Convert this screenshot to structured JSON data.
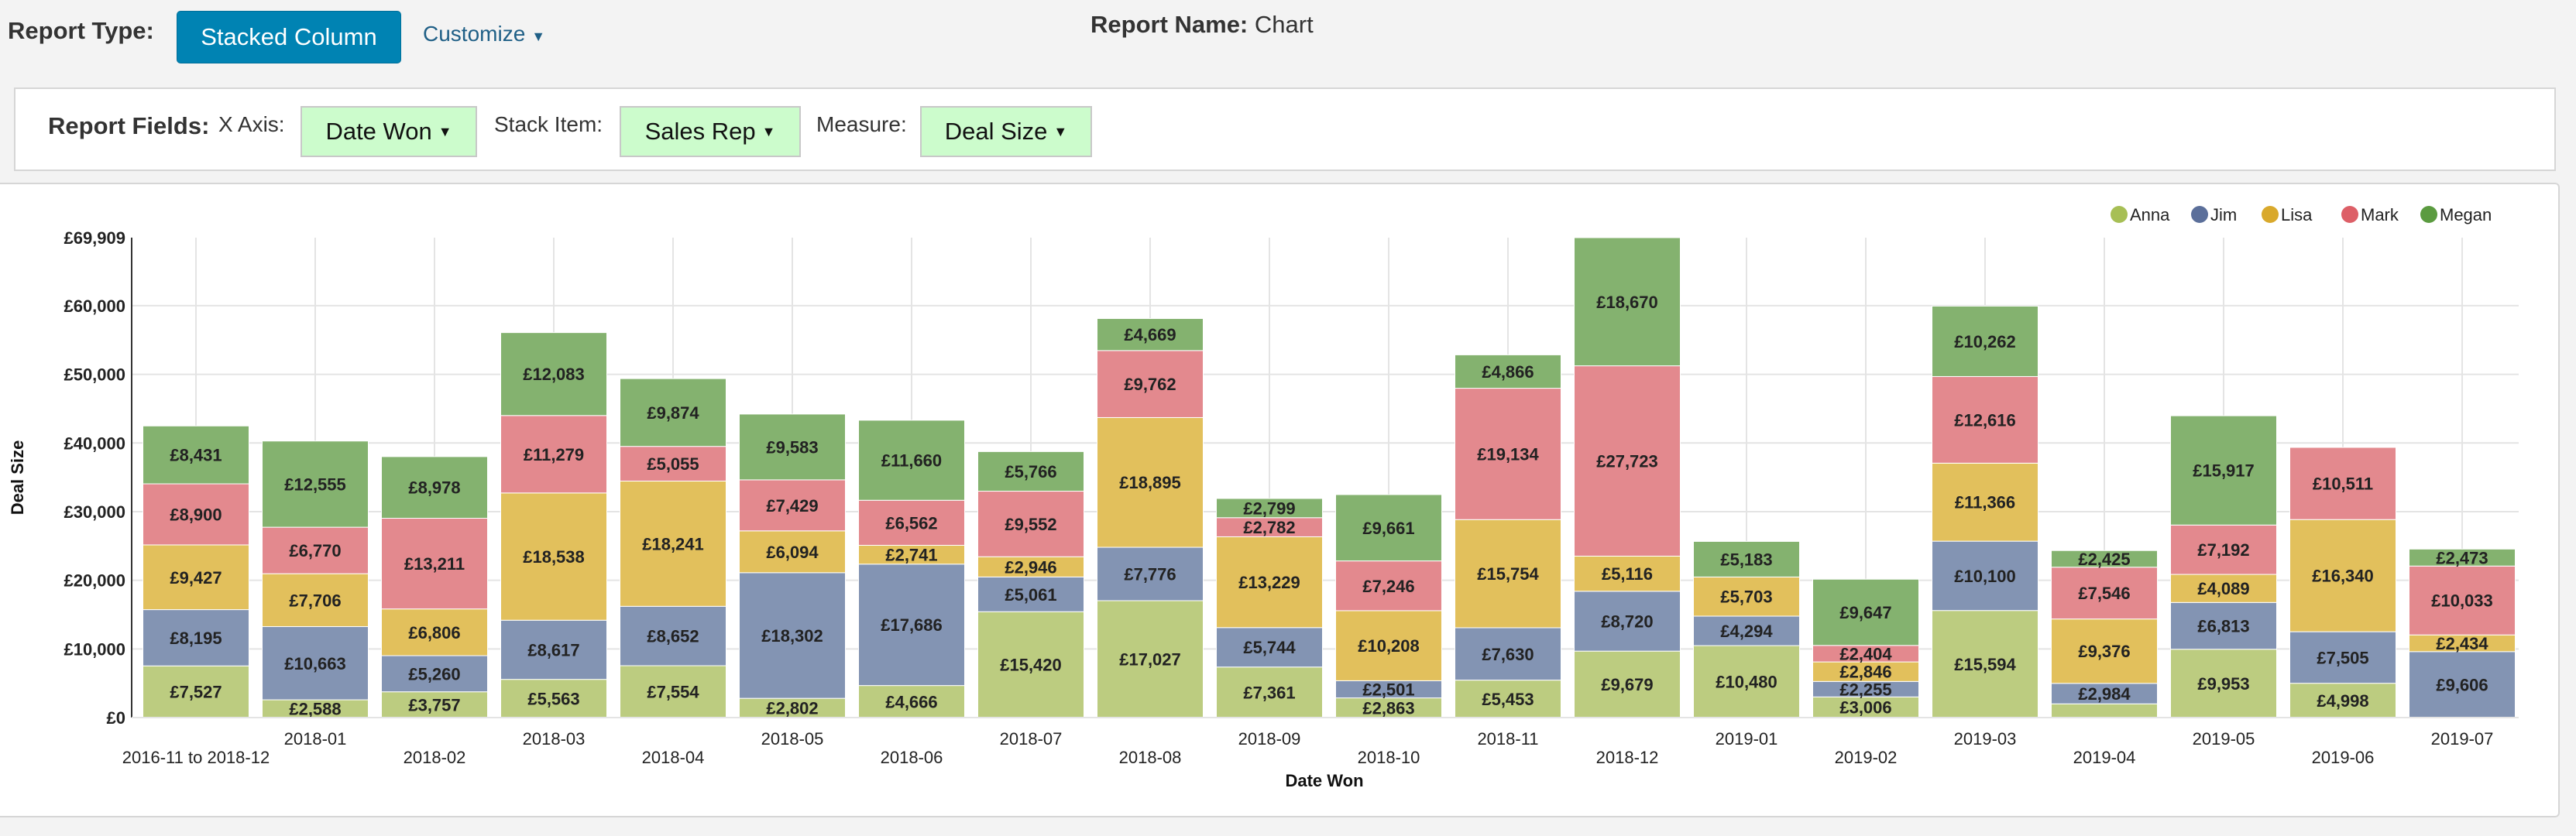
{
  "header": {
    "report_type_label": "Report Type:",
    "report_type_value": "Stacked Column",
    "customize_label": "Customize",
    "report_name_label": "Report Name:",
    "report_name_value": "Chart"
  },
  "fields": {
    "label": "Report Fields:",
    "x_axis_label": "X Axis:",
    "x_axis_value": "Date Won",
    "stack_item_label": "Stack Item:",
    "stack_item_value": "Sales Rep",
    "measure_label": "Measure:",
    "measure_value": "Deal Size"
  },
  "chart_data": {
    "type": "bar",
    "stacked": true,
    "xlabel": "Date Won",
    "ylabel": "Deal Size",
    "ylim": [
      0,
      69909
    ],
    "yticks": [
      "£0",
      "£10,000",
      "£20,000",
      "£30,000",
      "£40,000",
      "£50,000",
      "£60,000",
      "£69,909"
    ],
    "ytick_values": [
      0,
      10000,
      20000,
      30000,
      40000,
      50000,
      60000,
      69909
    ],
    "grid": true,
    "legend_position": "top-right",
    "categories": [
      "2016-11 to 2018-12",
      "2018-01",
      "2018-02",
      "2018-03",
      "2018-04",
      "2018-05",
      "2018-06",
      "2018-07",
      "2018-08",
      "2018-09",
      "2018-10",
      "2018-11",
      "2018-12",
      "2019-01",
      "2019-02",
      "2019-03",
      "2019-04",
      "2019-05",
      "2019-06",
      "2019-07"
    ],
    "series": [
      {
        "name": "Anna",
        "color": "#bccc80",
        "legend_color": "#a7bf55",
        "values": [
          7527,
          2588,
          3757,
          5563,
          7554,
          2802,
          4666,
          15420,
          17027,
          7361,
          2863,
          5453,
          9679,
          10480,
          3006,
          15594,
          2000,
          9953,
          4998,
          0
        ]
      },
      {
        "name": "Jim",
        "color": "#8394b3",
        "legend_color": "#5b6f9a",
        "values": [
          8195,
          10663,
          5260,
          8617,
          8652,
          18302,
          17686,
          5061,
          7776,
          5744,
          2501,
          7630,
          8720,
          4294,
          2255,
          10100,
          2984,
          6813,
          7505,
          9606
        ]
      },
      {
        "name": "Lisa",
        "color": "#e2c05c",
        "legend_color": "#d9a92c",
        "values": [
          9427,
          7706,
          6806,
          18538,
          18241,
          6094,
          2741,
          2946,
          18895,
          13229,
          10208,
          15754,
          5116,
          5703,
          2846,
          11366,
          9376,
          4089,
          16340,
          2434
        ]
      },
      {
        "name": "Mark",
        "color": "#e3898e",
        "legend_color": "#dd5f67",
        "values": [
          8900,
          6770,
          13211,
          11279,
          5055,
          7429,
          6562,
          9552,
          9762,
          2782,
          7246,
          19134,
          27723,
          0,
          2404,
          12616,
          7546,
          7192,
          10511,
          10033
        ]
      },
      {
        "name": "Megan",
        "color": "#84b26f",
        "legend_color": "#5b9b40",
        "values": [
          8431,
          12555,
          8978,
          12083,
          9874,
          9583,
          11660,
          5766,
          4669,
          2799,
          9661,
          4866,
          18670,
          5183,
          9647,
          10262,
          2425,
          15917,
          0,
          2473
        ]
      }
    ]
  }
}
